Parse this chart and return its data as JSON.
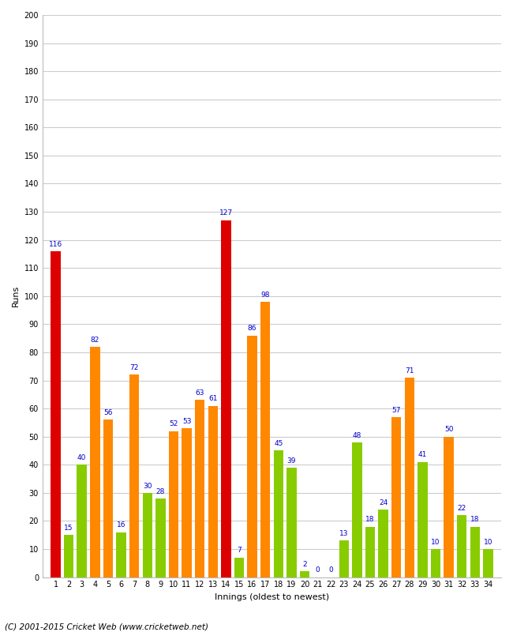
{
  "innings": [
    1,
    2,
    3,
    4,
    5,
    6,
    7,
    8,
    9,
    10,
    11,
    12,
    13,
    14,
    15,
    16,
    17,
    18,
    19,
    20,
    21,
    22,
    23,
    24,
    25,
    26,
    27,
    28,
    29,
    30,
    31,
    32,
    33,
    34
  ],
  "values": [
    116,
    15,
    40,
    82,
    56,
    16,
    72,
    30,
    28,
    52,
    53,
    63,
    61,
    127,
    7,
    86,
    98,
    45,
    39,
    2,
    0,
    0,
    13,
    48,
    18,
    24,
    57,
    71,
    41,
    10,
    50,
    22,
    18,
    10
  ],
  "colors": [
    "#dd0000",
    "#88cc00",
    "#88cc00",
    "#ff8800",
    "#ff8800",
    "#88cc00",
    "#ff8800",
    "#88cc00",
    "#88cc00",
    "#ff8800",
    "#ff8800",
    "#ff8800",
    "#ff8800",
    "#dd0000",
    "#88cc00",
    "#ff8800",
    "#ff8800",
    "#88cc00",
    "#88cc00",
    "#88cc00",
    "#88cc00",
    "#88cc00",
    "#88cc00",
    "#88cc00",
    "#88cc00",
    "#88cc00",
    "#ff8800",
    "#ff8800",
    "#88cc00",
    "#88cc00",
    "#ff8800",
    "#88cc00",
    "#88cc00",
    "#88cc00"
  ],
  "ylabel": "Runs",
  "xlabel": "Innings (oldest to newest)",
  "ylim": [
    0,
    200
  ],
  "yticks": [
    0,
    10,
    20,
    30,
    40,
    50,
    60,
    70,
    80,
    90,
    100,
    110,
    120,
    130,
    140,
    150,
    160,
    170,
    180,
    190,
    200
  ],
  "bar_width": 0.75,
  "label_color": "#0000cc",
  "label_fontsize": 6.5,
  "axis_label_fontsize": 8,
  "tick_fontsize": 7,
  "footer": "(C) 2001-2015 Cricket Web (www.cricketweb.net)",
  "footer_fontsize": 7.5,
  "bg_color": "#ffffff",
  "grid_color": "#cccccc"
}
